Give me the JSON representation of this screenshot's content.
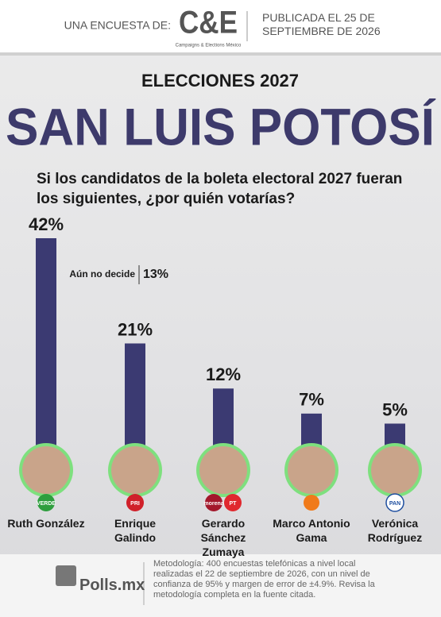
{
  "header": {
    "intro": "UNA ENCUESTA DE:",
    "brand": "C&E",
    "brand_sub": "Campaigns & Elections México",
    "published": "PUBLICADA EL 25 DE SEPTIEMBRE DE 2026"
  },
  "chart_data": {
    "type": "bar",
    "title": "SAN LUIS POTOSÍ",
    "supertitle": "ELECCIONES 2027",
    "subtitle": "Si los candidatos de la boleta electoral 2027 fueran los siguientes, ¿por quién votarías?",
    "categories": [
      "Ruth González",
      "Enrique Galindo",
      "Gerardo Sánchez Zumaya",
      "Marco Antonio Gama",
      "Verónica Rodríguez"
    ],
    "values": [
      42,
      21,
      12,
      7,
      5
    ],
    "value_labels": [
      "42%",
      "21%",
      "12%",
      "7%",
      "5%"
    ],
    "color": "#3b3a72",
    "parties": [
      [
        "VERDE"
      ],
      [
        "PRI"
      ],
      [
        "morena",
        "PT"
      ],
      [],
      [
        "PAN"
      ]
    ],
    "annotation": {
      "label": "Aún no decide",
      "value": 13,
      "value_label": "13%"
    }
  },
  "footer": {
    "brand": "Polls.mx",
    "methodology": "Metodología: 400 encuestas telefónicas a nivel local realizadas el 22 de septiembre de 2026, con un nivel de confianza de 95% y margen de error de ±4.9%. Revisa la metodología completa en la fuente citada."
  }
}
